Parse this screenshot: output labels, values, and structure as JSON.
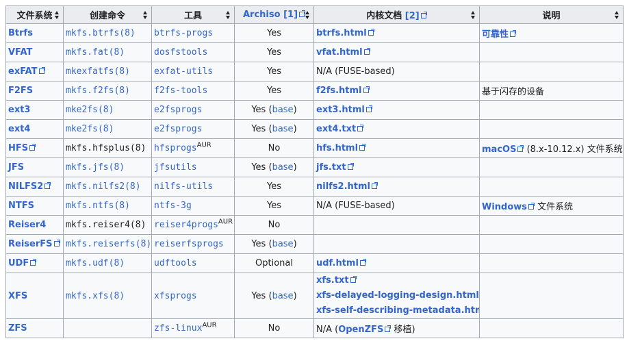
{
  "headers": [
    "文件系统",
    "创建命令",
    "工具",
    "Archiso [1]",
    "内核文档 [2]",
    "说明"
  ],
  "archiso_header": {
    "text": "Archiso",
    "ref": "[1]"
  },
  "kernel_doc_header": {
    "text": "内核文档",
    "ref": "[2]"
  },
  "rows": [
    {
      "fs": "Btrfs",
      "fs_ext": false,
      "cmd": "mkfs.btrfs(8)",
      "cmd_link": true,
      "tool": "btrfs-progs",
      "tool_link": true,
      "tool_aur": false,
      "archiso": "Yes",
      "archiso_status": "yes",
      "archiso_base": false,
      "doc": [
        "btrfs.html"
      ],
      "doc_plain": "",
      "note_link": "可靠性",
      "note_text": ""
    },
    {
      "fs": "VFAT",
      "fs_ext": false,
      "cmd": "mkfs.fat(8)",
      "cmd_link": true,
      "tool": "dosfstools",
      "tool_link": true,
      "tool_aur": false,
      "archiso": "Yes",
      "archiso_status": "yes",
      "archiso_base": false,
      "doc": [
        "vfat.html"
      ],
      "doc_plain": "",
      "note_link": "",
      "note_text": ""
    },
    {
      "fs": "exFAT",
      "fs_ext": true,
      "cmd": "mkexfatfs(8)",
      "cmd_link": true,
      "tool": "exfat-utils",
      "tool_link": true,
      "tool_aur": false,
      "archiso": "Yes",
      "archiso_status": "yes",
      "archiso_base": false,
      "doc": [],
      "doc_plain": "N/A (FUSE-based)",
      "note_link": "",
      "note_text": ""
    },
    {
      "fs": "F2FS",
      "fs_ext": false,
      "cmd": "mkfs.f2fs(8)",
      "cmd_link": true,
      "tool": "f2fs-tools",
      "tool_link": true,
      "tool_aur": false,
      "archiso": "Yes",
      "archiso_status": "yes",
      "archiso_base": false,
      "doc": [
        "f2fs.html"
      ],
      "doc_plain": "",
      "note_link": "",
      "note_text": "基于闪存的设备"
    },
    {
      "fs": "ext3",
      "fs_ext": false,
      "cmd": "mke2fs(8)",
      "cmd_link": true,
      "tool": "e2fsprogs",
      "tool_link": true,
      "tool_aur": false,
      "archiso": "Yes",
      "archiso_status": "yes",
      "archiso_base": true,
      "doc": [
        "ext3.html"
      ],
      "doc_plain": "",
      "note_link": "",
      "note_text": ""
    },
    {
      "fs": "ext4",
      "fs_ext": false,
      "cmd": "mke2fs(8)",
      "cmd_link": true,
      "tool": "e2fsprogs",
      "tool_link": true,
      "tool_aur": false,
      "archiso": "Yes",
      "archiso_status": "yes",
      "archiso_base": true,
      "doc": [
        "ext4.txt"
      ],
      "doc_plain": "",
      "note_link": "",
      "note_text": ""
    },
    {
      "fs": "HFS",
      "fs_ext": true,
      "cmd": "mkfs.hfsplus(8)",
      "cmd_link": false,
      "tool": "hfsprogs",
      "tool_link": true,
      "tool_aur": true,
      "archiso": "No",
      "archiso_status": "no",
      "archiso_base": false,
      "doc": [
        "hfs.html"
      ],
      "doc_plain": "",
      "note_link": "macOS",
      "note_link_ext": true,
      "note_text": " (8.x-10.12.x) 文件系统"
    },
    {
      "fs": "JFS",
      "fs_ext": false,
      "cmd": "mkfs.jfs(8)",
      "cmd_link": true,
      "tool": "jfsutils",
      "tool_link": true,
      "tool_aur": false,
      "archiso": "Yes",
      "archiso_status": "yes",
      "archiso_base": true,
      "doc": [
        "jfs.txt"
      ],
      "doc_plain": "",
      "note_link": "",
      "note_text": ""
    },
    {
      "fs": "NILFS2",
      "fs_ext": true,
      "cmd": "mkfs.nilfs2(8)",
      "cmd_link": true,
      "tool": "nilfs-utils",
      "tool_link": true,
      "tool_aur": false,
      "archiso": "Yes",
      "archiso_status": "yes",
      "archiso_base": false,
      "doc": [
        "nilfs2.html"
      ],
      "doc_plain": "",
      "note_link": "",
      "note_text": ""
    },
    {
      "fs": "NTFS",
      "fs_ext": false,
      "cmd": "mkfs.ntfs(8)",
      "cmd_link": true,
      "tool": "ntfs-3g",
      "tool_link": true,
      "tool_aur": false,
      "archiso": "Yes",
      "archiso_status": "yes",
      "archiso_base": false,
      "doc": [],
      "doc_plain": "N/A (FUSE-based)",
      "note_link": "Windows",
      "note_link_ext": true,
      "note_text": " 文件系统"
    },
    {
      "fs": "Reiser4",
      "fs_ext": false,
      "cmd": "mkfs.reiser4(8)",
      "cmd_link": false,
      "tool": "reiser4progs",
      "tool_link": true,
      "tool_aur": true,
      "archiso": "No",
      "archiso_status": "no",
      "archiso_base": false,
      "doc": [],
      "doc_plain": "",
      "note_link": "",
      "note_text": ""
    },
    {
      "fs": "ReiserFS",
      "fs_ext": true,
      "cmd": "mkfs.reiserfs(8)",
      "cmd_link": true,
      "tool": "reiserfsprogs",
      "tool_link": true,
      "tool_aur": false,
      "archiso": "Yes",
      "archiso_status": "yes",
      "archiso_base": true,
      "doc": [],
      "doc_plain": "",
      "note_link": "",
      "note_text": ""
    },
    {
      "fs": "UDF",
      "fs_ext": true,
      "cmd": "mkfs.udf(8)",
      "cmd_link": true,
      "tool": "udftools",
      "tool_link": true,
      "tool_aur": false,
      "archiso": "Optional",
      "archiso_status": "opt",
      "archiso_base": false,
      "doc": [
        "udf.html"
      ],
      "doc_plain": "",
      "note_link": "",
      "note_text": ""
    },
    {
      "fs": "XFS",
      "fs_ext": false,
      "cmd": "mkfs.xfs(8)",
      "cmd_link": true,
      "tool": "xfsprogs",
      "tool_link": true,
      "tool_aur": false,
      "archiso": "Yes",
      "archiso_status": "yes",
      "archiso_base": true,
      "doc": [
        "xfs.txt",
        "xfs-delayed-logging-design.html",
        "xfs-self-describing-metadata.html"
      ],
      "doc_plain": "",
      "note_link": "",
      "note_text": "",
      "tall": true
    },
    {
      "fs": "ZFS",
      "fs_ext": false,
      "cmd": "",
      "cmd_link": false,
      "tool": "zfs-linux",
      "tool_link": true,
      "tool_aur": true,
      "archiso": "No",
      "archiso_status": "no",
      "archiso_base": false,
      "doc": [],
      "doc_plain": "",
      "doc_special": {
        "pre": "N/A (",
        "link": "OpenZFS",
        "post": " 移植)"
      },
      "note_link": "",
      "note_text": ""
    }
  ],
  "labels": {
    "base": "base",
    "aur": "AUR"
  },
  "colors": {
    "link": "#3366cc",
    "yes": "#9eff9e",
    "no": "#ffa0a0",
    "optional": "#ffffa0",
    "header": "#eaecf0",
    "border": "#a2a9b1"
  }
}
